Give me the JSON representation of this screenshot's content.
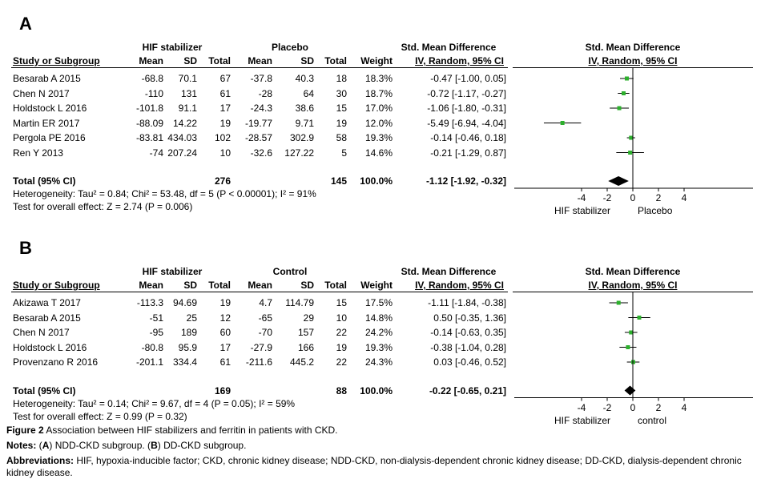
{
  "columns": {
    "study": "Study or Subgroup",
    "mean": "Mean",
    "sd": "SD",
    "total": "Total",
    "weight": "Weight",
    "ci_head1": "Std. Mean Difference",
    "ci_head2": "IV, Random, 95% CI"
  },
  "chart_data": [
    {
      "type": "forest",
      "panel": "A",
      "group1": "HIF stabilizer",
      "group2": "Placebo",
      "studies": [
        {
          "name": "Besarab A 2015",
          "m1": "-68.8",
          "sd1": "70.1",
          "n1": "67",
          "m2": "-37.8",
          "sd2": "40.3",
          "n2": "18",
          "weight": "18.3%",
          "ci_text": "-0.47 [-1.00, 0.05]",
          "est": -0.47,
          "lo": -1.0,
          "hi": 0.05
        },
        {
          "name": "Chen N 2017",
          "m1": "-110",
          "sd1": "131",
          "n1": "61",
          "m2": "-28",
          "sd2": "64",
          "n2": "30",
          "weight": "18.7%",
          "ci_text": "-0.72 [-1.17, -0.27]",
          "est": -0.72,
          "lo": -1.17,
          "hi": -0.27
        },
        {
          "name": "Holdstock L 2016",
          "m1": "-101.8",
          "sd1": "91.1",
          "n1": "17",
          "m2": "-24.3",
          "sd2": "38.6",
          "n2": "15",
          "weight": "17.0%",
          "ci_text": "-1.06 [-1.80, -0.31]",
          "est": -1.06,
          "lo": -1.8,
          "hi": -0.31
        },
        {
          "name": "Martin ER 2017",
          "m1": "-88.09",
          "sd1": "14.22",
          "n1": "19",
          "m2": "-19.77",
          "sd2": "9.71",
          "n2": "19",
          "weight": "12.0%",
          "ci_text": "-5.49 [-6.94, -4.04]",
          "est": -5.49,
          "lo": -6.94,
          "hi": -4.04
        },
        {
          "name": "Pergola PE 2016",
          "m1": "-83.81",
          "sd1": "434.03",
          "n1": "102",
          "m2": "-28.57",
          "sd2": "302.9",
          "n2": "58",
          "weight": "19.3%",
          "ci_text": "-0.14 [-0.46, 0.18]",
          "est": -0.14,
          "lo": -0.46,
          "hi": 0.18
        },
        {
          "name": "Ren Y 2013",
          "m1": "-74",
          "sd1": "207.24",
          "n1": "10",
          "m2": "-32.6",
          "sd2": "127.22",
          "n2": "5",
          "weight": "14.6%",
          "ci_text": "-0.21 [-1.29, 0.87]",
          "est": -0.21,
          "lo": -1.29,
          "hi": 0.87
        }
      ],
      "total": {
        "label": "Total (95% CI)",
        "n1": "276",
        "n2": "145",
        "weight": "100.0%",
        "ci_text": "-1.12 [-1.92, -0.32]",
        "est": -1.12,
        "lo": -1.92,
        "hi": -0.32
      },
      "heterogeneity": "Heterogeneity: Tau² = 0.84; Chi² = 53.48, df = 5 (P < 0.00001); I² = 91%",
      "overall_effect": "Test for overall effect: Z = 2.74 (P = 0.006)",
      "x_ticks": [
        "-4",
        "-2",
        "0",
        "2",
        "4"
      ],
      "xlim": [
        -4,
        4
      ],
      "favours_left": "HIF stabilizer",
      "favours_right": "Placebo"
    },
    {
      "type": "forest",
      "panel": "B",
      "group1": "HIF stabilizer",
      "group2": "Control",
      "studies": [
        {
          "name": "Akizawa T 2017",
          "m1": "-113.3",
          "sd1": "94.69",
          "n1": "19",
          "m2": "4.7",
          "sd2": "114.79",
          "n2": "15",
          "weight": "17.5%",
          "ci_text": "-1.11 [-1.84, -0.38]",
          "est": -1.11,
          "lo": -1.84,
          "hi": -0.38
        },
        {
          "name": "Besarab A 2015",
          "m1": "-51",
          "sd1": "25",
          "n1": "12",
          "m2": "-65",
          "sd2": "29",
          "n2": "10",
          "weight": "14.8%",
          "ci_text": "0.50 [-0.35, 1.36]",
          "est": 0.5,
          "lo": -0.35,
          "hi": 1.36
        },
        {
          "name": "Chen N 2017",
          "m1": "-95",
          "sd1": "189",
          "n1": "60",
          "m2": "-70",
          "sd2": "157",
          "n2": "22",
          "weight": "24.2%",
          "ci_text": "-0.14 [-0.63, 0.35]",
          "est": -0.14,
          "lo": -0.63,
          "hi": 0.35
        },
        {
          "name": "Holdstock L 2016",
          "m1": "-80.8",
          "sd1": "95.9",
          "n1": "17",
          "m2": "-27.9",
          "sd2": "166",
          "n2": "19",
          "weight": "19.3%",
          "ci_text": "-0.38 [-1.04, 0.28]",
          "est": -0.38,
          "lo": -1.04,
          "hi": 0.28
        },
        {
          "name": "Provenzano R 2016",
          "m1": "-201.1",
          "sd1": "334.4",
          "n1": "61",
          "m2": "-211.6",
          "sd2": "445.2",
          "n2": "22",
          "weight": "24.3%",
          "ci_text": "0.03 [-0.46, 0.52]",
          "est": 0.03,
          "lo": -0.46,
          "hi": 0.52
        }
      ],
      "total": {
        "label": "Total (95% CI)",
        "n1": "169",
        "n2": "88",
        "weight": "100.0%",
        "ci_text": "-0.22 [-0.65, 0.21]",
        "est": -0.22,
        "lo": -0.65,
        "hi": 0.21
      },
      "heterogeneity": "Heterogeneity: Tau² = 0.14; Chi² = 9.67, df = 4 (P = 0.05); I² = 59%",
      "overall_effect": "Test for overall effect: Z = 0.99 (P = 0.32)",
      "x_ticks": [
        "-4",
        "-2",
        "0",
        "2",
        "4"
      ],
      "xlim": [
        -4,
        4
      ],
      "favours_left": "HIF stabilizer",
      "favours_right": "control"
    }
  ],
  "colors": {
    "marker": "#2db02d",
    "diamond": "#000000"
  },
  "caption": {
    "figure_label": "Figure 2",
    "figure_text": " Association between HIF stabilizers and ferritin in patients with CKD.",
    "notes_label": "Notes:",
    "notes_text_1": " (",
    "notes_a": "A",
    "notes_text_2": ") NDD-CKD subgroup. (",
    "notes_b": "B",
    "notes_text_3": ") DD-CKD subgroup.",
    "abbr_label": "Abbreviations:",
    "abbr_text": " HIF, hypoxia-inducible factor; CKD, chronic kidney disease; NDD-CKD, non-dialysis-dependent chronic kidney disease; DD-CKD, dialysis-dependent chronic kidney disease."
  }
}
